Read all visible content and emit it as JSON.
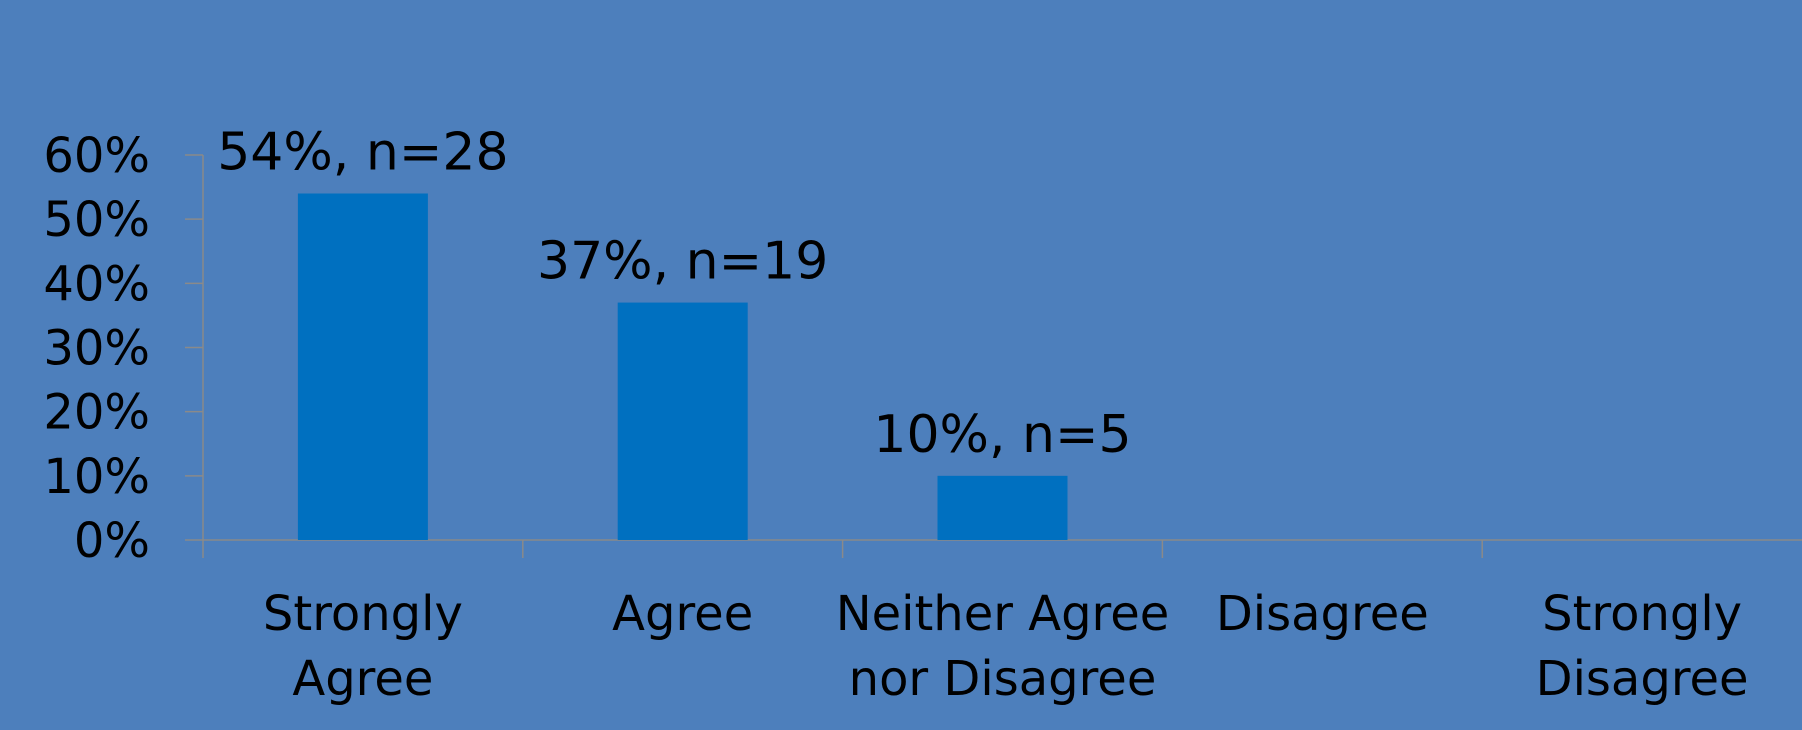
{
  "colors": {
    "background": "#4d7fbc",
    "bar": "#0070c0",
    "axis": "#8a8a8a",
    "text": "#000000"
  },
  "chart_data": {
    "type": "bar",
    "title": "",
    "xlabel": "",
    "ylabel": "",
    "categories": [
      [
        "Strongly",
        "Agree"
      ],
      [
        "Agree"
      ],
      [
        "Neither Agree",
        "nor Disagree"
      ],
      [
        "Disagree"
      ],
      [
        "Strongly",
        "Disagree"
      ]
    ],
    "values": [
      54,
      37,
      10,
      0,
      0
    ],
    "data_labels": [
      "54%, n=28",
      "37%, n=19",
      "10%, n=5",
      "",
      ""
    ],
    "ylim": [
      0,
      60
    ],
    "yticks": [
      "0%",
      "10%",
      "20%",
      "30%",
      "40%",
      "50%",
      "60%"
    ],
    "grid": false,
    "legend": "none"
  }
}
